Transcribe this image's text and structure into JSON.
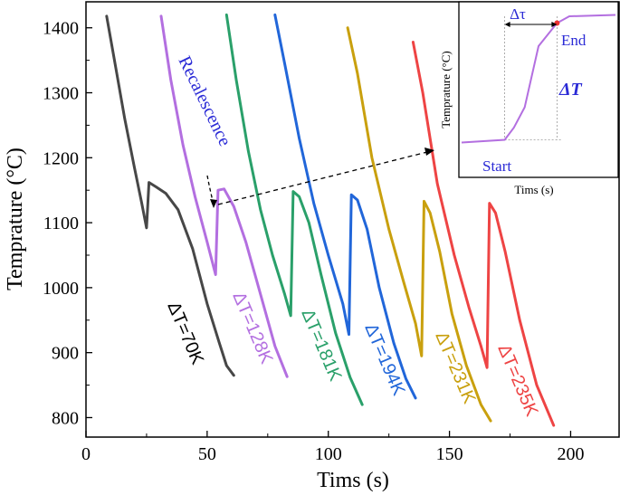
{
  "chart_data": {
    "type": "line",
    "xlabel": "Tims (s)",
    "ylabel": "Temprature (°C)",
    "xlim": [
      0,
      220
    ],
    "ylim": [
      770,
      1440
    ],
    "xticks": [
      0,
      50,
      100,
      150,
      200
    ],
    "yticks": [
      800,
      900,
      1000,
      1100,
      1200,
      1300,
      1400
    ],
    "colors": {
      "black": "#474747",
      "purple": "#b36fe0",
      "green": "#2aa06a",
      "blue": "#2166d9",
      "gold": "#c9a00e",
      "red": "#ee4444"
    },
    "series": [
      {
        "name": "ΔT=70K",
        "color": "#474747",
        "x": [
          8.5,
          12,
          16,
          20,
          23,
          25,
          26,
          29,
          33,
          38,
          44,
          50,
          55,
          58,
          61
        ],
        "y": [
          1418,
          1345,
          1260,
          1185,
          1130,
          1092,
          1162,
          1155,
          1145,
          1120,
          1060,
          975,
          915,
          880,
          865
        ]
      },
      {
        "name": "ΔT=128K",
        "color": "#b36fe0",
        "x": [
          31,
          35,
          40,
          45,
          50,
          53.5,
          54.5,
          57,
          61,
          66,
          72,
          78,
          83
        ],
        "y": [
          1418,
          1320,
          1220,
          1140,
          1070,
          1020,
          1150,
          1152,
          1125,
          1070,
          990,
          910,
          863
        ]
      },
      {
        "name": "ΔT=181K",
        "color": "#2aa06a",
        "x": [
          58,
          62,
          67,
          72,
          77,
          82,
          84.5,
          85.5,
          88,
          92,
          97,
          103,
          109,
          114
        ],
        "y": [
          1420,
          1320,
          1210,
          1120,
          1050,
          990,
          957,
          1148,
          1140,
          1100,
          1020,
          930,
          862,
          820
        ]
      },
      {
        "name": "ΔT=194K",
        "color": "#2166d9",
        "x": [
          78,
          82,
          88,
          94,
          100,
          106,
          108.5,
          109.5,
          112,
          116,
          121,
          127,
          132,
          136
        ],
        "y": [
          1420,
          1345,
          1230,
          1130,
          1050,
          975,
          928,
          1143,
          1135,
          1090,
          1000,
          915,
          860,
          830
        ]
      },
      {
        "name": "ΔT=231K",
        "color": "#c9a00e",
        "x": [
          108,
          112,
          118,
          125,
          131,
          136,
          138.5,
          139.5,
          142,
          146,
          151,
          157,
          163,
          167
        ],
        "y": [
          1400,
          1330,
          1200,
          1090,
          1010,
          945,
          895,
          1133,
          1115,
          1055,
          960,
          880,
          820,
          795
        ]
      },
      {
        "name": "ΔT=235K",
        "color": "#ee4444",
        "x": [
          135,
          139,
          145,
          152,
          158,
          163,
          165.5,
          166.5,
          169,
          173,
          179,
          186,
          193
        ],
        "y": [
          1378,
          1300,
          1160,
          1050,
          970,
          910,
          877,
          1130,
          1115,
          1055,
          950,
          850,
          788
        ]
      }
    ],
    "annotations": {
      "recalescence": "Recalescence",
      "delta_t_labels": [
        "ΔT=70K",
        "ΔT=128K",
        "ΔT=181K",
        "ΔT=194K",
        "ΔT=231K",
        "ΔT=235K"
      ]
    },
    "inset": {
      "xlabel": "Tims (s)",
      "ylabel": "Temprature (°C)",
      "start_label": "Start",
      "end_label": "End",
      "delta_tau_label": "Δτ",
      "delta_T_label": "ΔT",
      "curve_x": [
        0,
        0.28,
        0.34,
        0.41,
        0.5,
        0.62,
        0.7,
        1.0
      ],
      "curve_y": [
        0.07,
        0.09,
        0.18,
        0.33,
        0.78,
        0.95,
        1.0,
        1.01
      ],
      "start_point": [
        0.28,
        0.09
      ],
      "end_point": [
        0.62,
        0.95
      ]
    }
  }
}
